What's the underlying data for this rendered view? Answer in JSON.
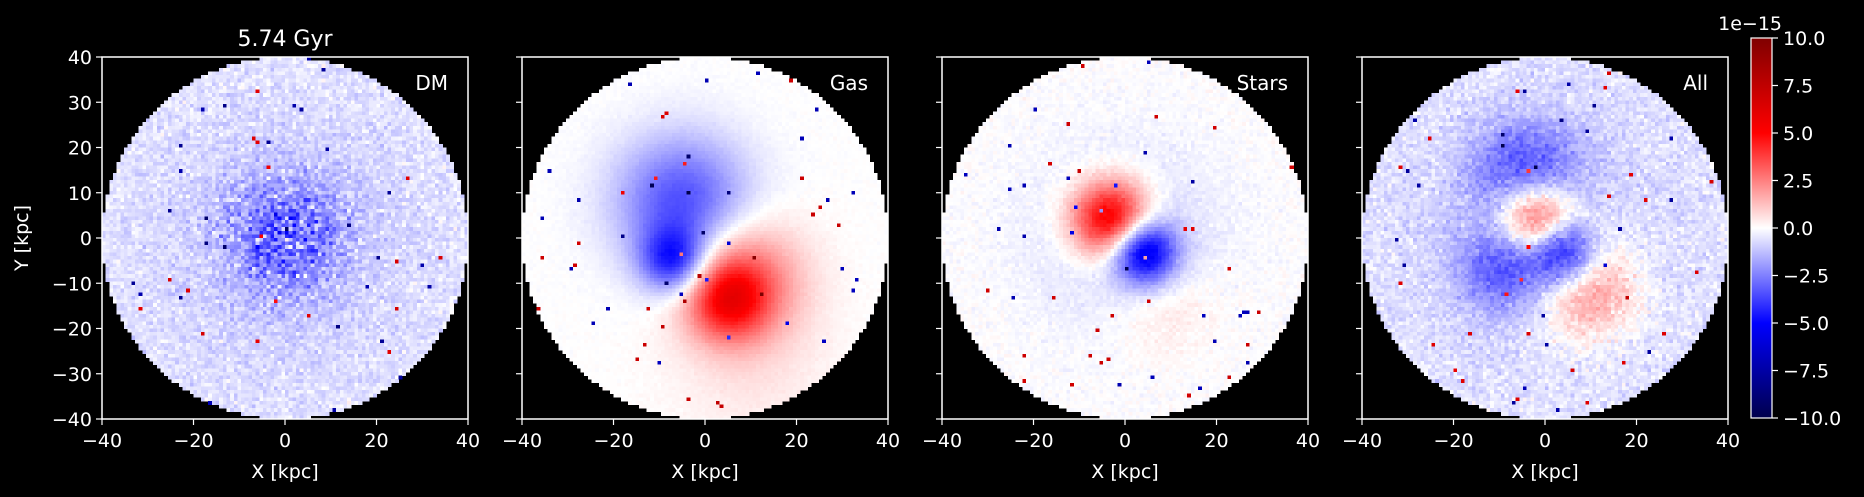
{
  "figure": {
    "title": "5.74 Gyr"
  },
  "chart_data": [
    {
      "type": "heatmap",
      "panel_label": "DM",
      "xlabel": "X [kpc]",
      "ylabel": "Y [kpc]",
      "xlim": [
        -40,
        40
      ],
      "ylim": [
        -40,
        40
      ],
      "xticks": [
        -40,
        -20,
        0,
        20,
        40
      ],
      "yticks": [
        -40,
        -30,
        -20,
        -10,
        0,
        10,
        20,
        30,
        40
      ],
      "disk_radius": 40,
      "features": [
        {
          "x": 0,
          "y": 0,
          "r": 40,
          "amp": -0.09
        },
        {
          "x": 0,
          "y": 0,
          "r": 9,
          "amp": -0.22,
          "noise": 0.35
        }
      ],
      "noise": 0.12
    },
    {
      "type": "heatmap",
      "panel_label": "Gas",
      "xlabel": "X [kpc]",
      "ylabel": "",
      "xlim": [
        -40,
        40
      ],
      "ylim": [
        -40,
        40
      ],
      "xticks": [
        -40,
        -20,
        0,
        20,
        40
      ],
      "yticks": [
        -40,
        -30,
        -20,
        -10,
        0,
        10,
        20,
        30,
        40
      ],
      "disk_radius": 40,
      "features": [
        {
          "x": -5,
          "y": 8,
          "r": 10,
          "amp": -0.35
        },
        {
          "x": -7,
          "y": -5,
          "r": 5,
          "amp": -0.4
        },
        {
          "x": 8,
          "y": -9,
          "r": 9,
          "amp": 0.3
        },
        {
          "x": 5,
          "y": -14,
          "r": 6,
          "amp": 0.35
        },
        {
          "x": 10,
          "y": -28,
          "r": 12,
          "amp": 0.05
        }
      ],
      "noise": 0.02
    },
    {
      "type": "heatmap",
      "panel_label": "Stars",
      "xlabel": "X [kpc]",
      "ylabel": "",
      "xlim": [
        -40,
        40
      ],
      "ylim": [
        -40,
        40
      ],
      "xticks": [
        -40,
        -20,
        0,
        20,
        40
      ],
      "yticks": [
        -40,
        -30,
        -20,
        -10,
        0,
        10,
        20,
        30,
        40
      ],
      "disk_radius": 40,
      "features": [
        {
          "x": -3,
          "y": 4,
          "r": 6,
          "amp": 0.65
        },
        {
          "x": 4,
          "y": -3,
          "r": 5,
          "amp": -0.6
        },
        {
          "x": 0,
          "y": 0,
          "r": 14,
          "amp": -0.1
        },
        {
          "x": 8,
          "y": -14,
          "r": 8,
          "amp": 0.08
        }
      ],
      "noise": 0.05
    },
    {
      "type": "heatmap",
      "panel_label": "All",
      "xlabel": "X [kpc]",
      "ylabel": "",
      "xlim": [
        -40,
        40
      ],
      "ylim": [
        -40,
        40
      ],
      "xticks": [
        -40,
        -20,
        0,
        20,
        40
      ],
      "yticks": [
        -40,
        -30,
        -20,
        -10,
        0,
        10,
        20,
        30,
        40
      ],
      "disk_radius": 40,
      "features": [
        {
          "x": 0,
          "y": 0,
          "r": 40,
          "amp": -0.09
        },
        {
          "x": -2,
          "y": 4,
          "r": 6,
          "amp": 0.55
        },
        {
          "x": 4,
          "y": -3,
          "r": 5,
          "amp": -0.5
        },
        {
          "x": -4,
          "y": 14,
          "r": 8,
          "amp": -0.3
        },
        {
          "x": -8,
          "y": -6,
          "r": 7,
          "amp": -0.3
        },
        {
          "x": 9,
          "y": -11,
          "r": 8,
          "amp": 0.28
        }
      ],
      "noise": 0.12
    }
  ],
  "colorbar": {
    "colormap": "seismic",
    "vmin": -10.0,
    "vmax": 10.0,
    "ticks": [
      10.0,
      7.5,
      5.0,
      2.5,
      0.0,
      -2.5,
      -5.0,
      -7.5,
      -10.0
    ],
    "tick_labels": [
      "10.0",
      "7.5",
      "5.0",
      "2.5",
      "0.0",
      "−2.5",
      "−5.0",
      "−7.5",
      "−10.0"
    ],
    "offset_label": "1e−15",
    "colors": {
      "low": "#00004c",
      "mid": "#ffffff",
      "high": "#800000",
      "blue": "#0000ff",
      "red": "#ff0000"
    }
  }
}
